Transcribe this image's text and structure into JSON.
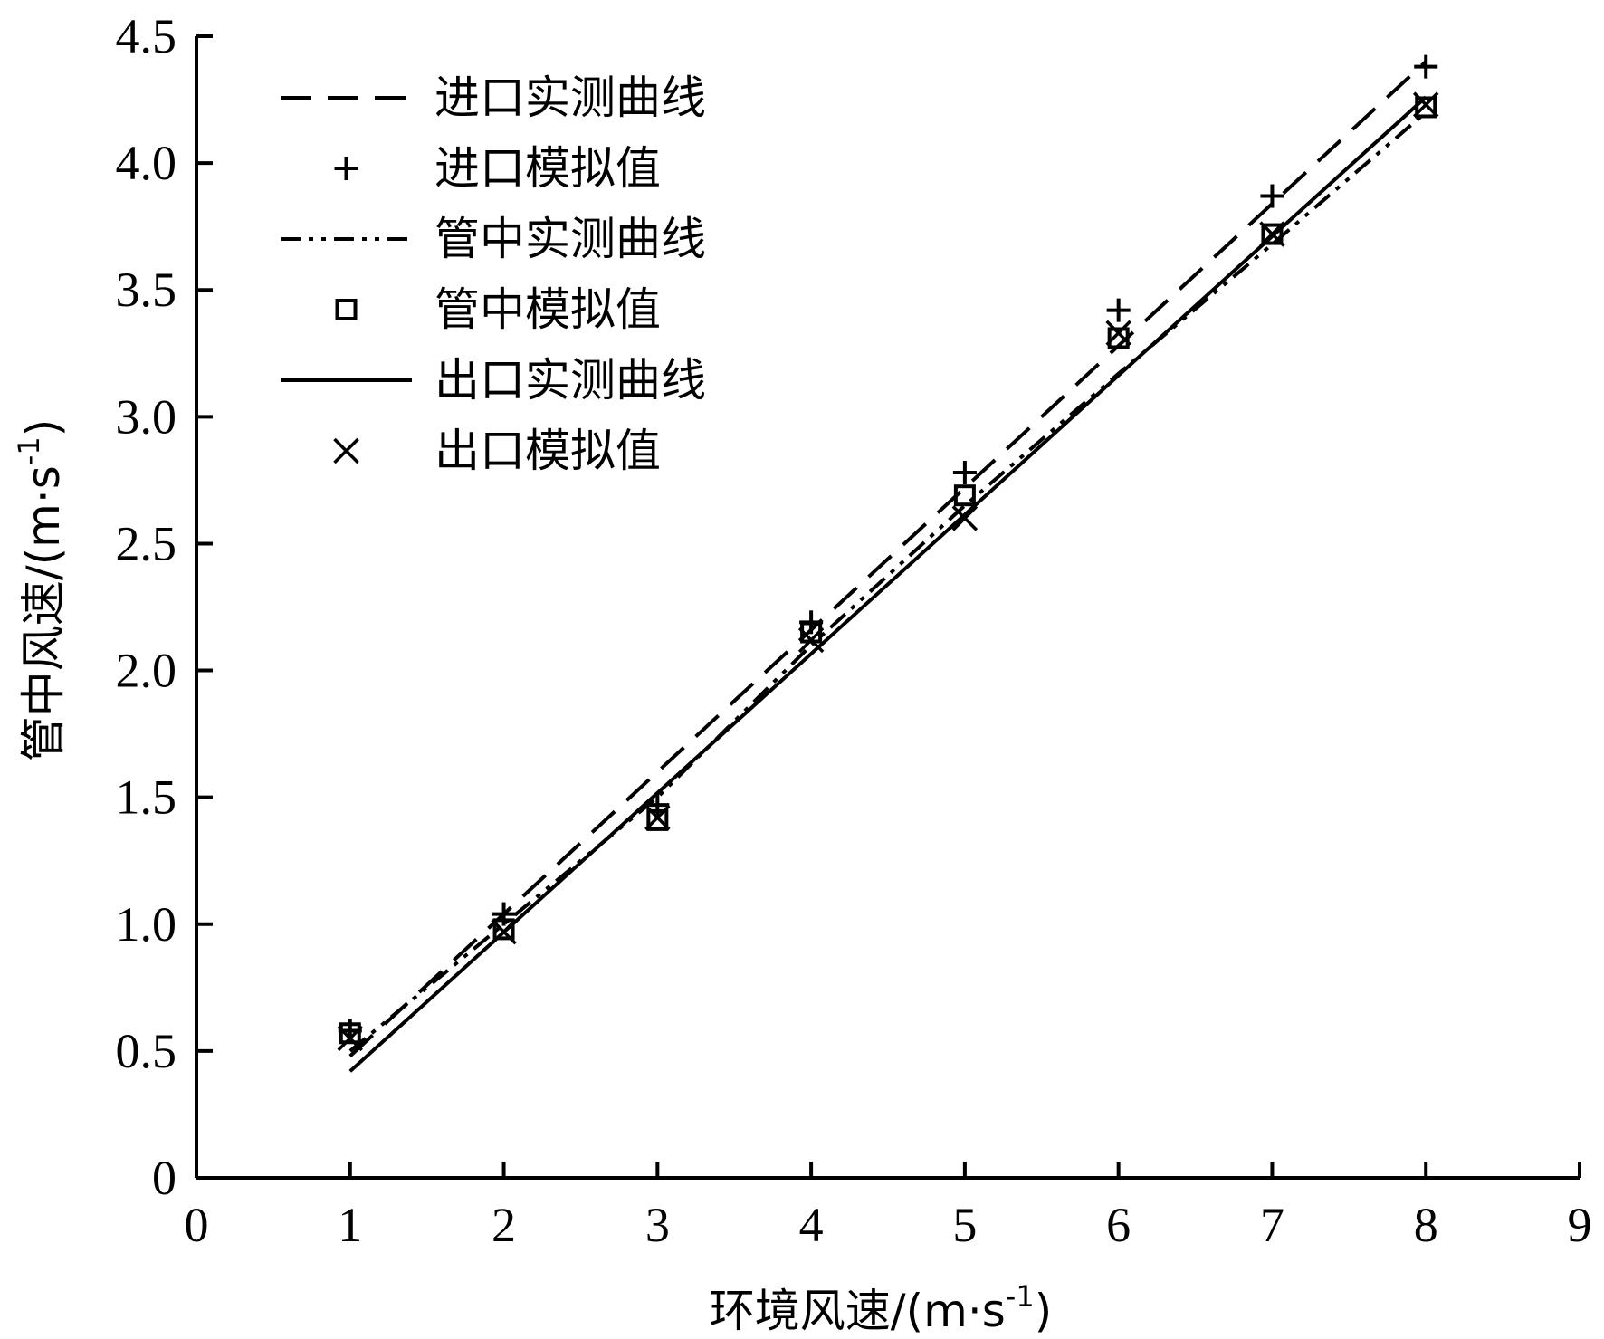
{
  "chart_data": {
    "type": "line",
    "xlabel": "环境风速/(m·s",
    "xlabel_sup": "-1",
    "xlabel_close": ")",
    "ylabel": "管中风速/(m·s",
    "ylabel_sup": "-1",
    "ylabel_close": ")",
    "xlim": [
      0,
      9
    ],
    "ylim": [
      0,
      4.5
    ],
    "xticks": [
      0,
      1,
      2,
      3,
      4,
      5,
      6,
      7,
      8,
      9
    ],
    "xtick_labels": [
      "0",
      "1",
      "2",
      "3",
      "4",
      "5",
      "6",
      "7",
      "8",
      "9"
    ],
    "yticks": [
      0,
      0.5,
      1.0,
      1.5,
      2.0,
      2.5,
      3.0,
      3.5,
      4.0,
      4.5
    ],
    "ytick_labels": [
      "0",
      "0.5",
      "1.0",
      "1.5",
      "2.0",
      "2.5",
      "3.0",
      "3.5",
      "4.0",
      "4.5"
    ],
    "grid": false,
    "legend_position": "top-left",
    "series": [
      {
        "name": "进口实测曲线",
        "kind": "line",
        "style": "dashed",
        "x": [
          1,
          8
        ],
        "y": [
          0.48,
          4.4
        ]
      },
      {
        "name": "进口模拟值",
        "kind": "marker",
        "marker": "plus",
        "x": [
          1,
          2,
          3,
          4,
          5,
          6,
          7,
          8
        ],
        "y": [
          0.58,
          1.04,
          1.47,
          2.19,
          2.78,
          3.42,
          3.87,
          4.38
        ]
      },
      {
        "name": "管中实测曲线",
        "kind": "line",
        "style": "dash-dot-dot",
        "x": [
          1,
          2,
          3,
          4,
          5,
          6,
          7,
          8
        ],
        "y": [
          0.5,
          1.0,
          1.5,
          2.1,
          2.65,
          3.17,
          3.68,
          4.2
        ]
      },
      {
        "name": "管中模拟值",
        "kind": "marker",
        "marker": "square",
        "x": [
          1,
          2,
          3,
          4,
          5,
          6,
          7,
          8
        ],
        "y": [
          0.57,
          0.98,
          1.41,
          2.15,
          2.69,
          3.31,
          3.72,
          4.22
        ]
      },
      {
        "name": "出口实测曲线",
        "kind": "line",
        "style": "solid",
        "x": [
          1,
          8
        ],
        "y": [
          0.42,
          4.26
        ]
      },
      {
        "name": "出口模拟值",
        "kind": "marker",
        "marker": "x",
        "x": [
          1,
          2,
          3,
          4,
          5,
          6,
          7,
          8
        ],
        "y": [
          0.55,
          0.97,
          1.42,
          2.12,
          2.6,
          3.33,
          3.72,
          4.23
        ]
      }
    ]
  }
}
